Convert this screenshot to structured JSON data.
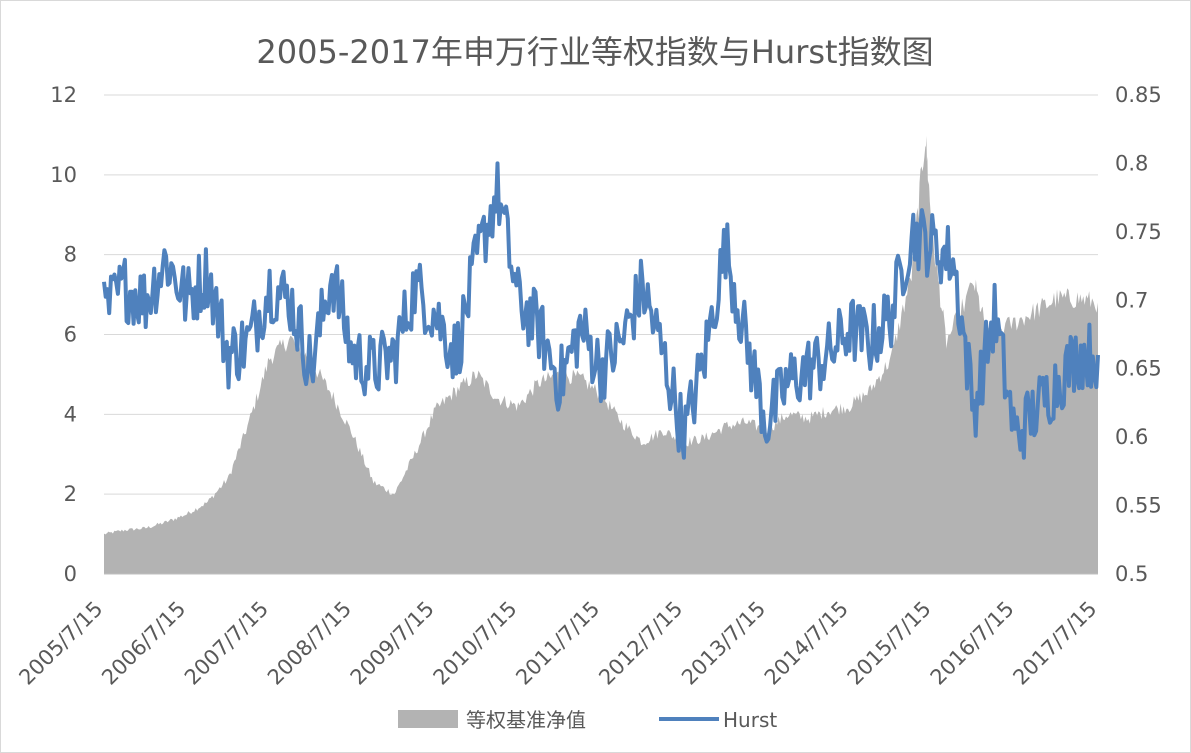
{
  "chart_data": {
    "type": "area+line",
    "title": "2005-2017年申万行业等权指数与Hurst指数图",
    "x_range": [
      "2005/7/15",
      "2017/7/15"
    ],
    "x_tick_labels": [
      "2005/7/15",
      "2006/7/15",
      "2007/7/15",
      "2008/7/15",
      "2009/7/15",
      "2010/7/15",
      "2011/7/15",
      "2012/7/15",
      "2013/7/15",
      "2014/7/15",
      "2015/7/15",
      "2016/7/15",
      "2017/7/15"
    ],
    "y_left": {
      "min": 0,
      "max": 12,
      "ticks": [
        "0",
        "2",
        "4",
        "6",
        "8",
        "10",
        "12"
      ]
    },
    "y_right": {
      "min": 0.5,
      "max": 0.85,
      "ticks": [
        "0.5",
        "0.55",
        "0.6",
        "0.65",
        "0.7",
        "0.75",
        "0.8",
        "0.85"
      ]
    },
    "grid": true,
    "legend_position": "bottom",
    "series": [
      {
        "name": "等权基准净值",
        "type": "area",
        "axis": "left",
        "color": "#b3b3b3",
        "x": [
          "2005/7/15",
          "2005/10/15",
          "2006/1/15",
          "2006/4/15",
          "2006/7/15",
          "2006/10/15",
          "2007/1/15",
          "2007/4/15",
          "2007/7/15",
          "2007/10/15",
          "2008/1/15",
          "2008/4/15",
          "2008/7/15",
          "2008/10/15",
          "2009/1/15",
          "2009/4/15",
          "2009/7/15",
          "2009/10/15",
          "2010/1/15",
          "2010/4/15",
          "2010/7/15",
          "2010/10/15",
          "2011/1/15",
          "2011/4/15",
          "2011/7/15",
          "2011/10/15",
          "2012/1/15",
          "2012/4/15",
          "2012/7/15",
          "2012/10/15",
          "2013/1/15",
          "2013/4/15",
          "2013/7/15",
          "2013/10/15",
          "2014/1/15",
          "2014/4/15",
          "2014/7/15",
          "2014/10/15",
          "2015/1/15",
          "2015/4/15",
          "2015/6/15",
          "2015/7/15",
          "2015/9/15",
          "2016/1/15",
          "2016/3/15",
          "2016/7/15",
          "2016/10/15",
          "2017/1/15",
          "2017/4/15",
          "2017/7/15"
        ],
        "values": [
          1.0,
          1.1,
          1.15,
          1.3,
          1.5,
          1.8,
          2.4,
          3.8,
          5.4,
          5.9,
          5.3,
          4.5,
          3.5,
          2.3,
          2.0,
          3.0,
          4.1,
          4.6,
          5.0,
          4.4,
          4.2,
          4.8,
          5.0,
          4.9,
          4.5,
          3.8,
          3.3,
          3.6,
          3.3,
          3.4,
          3.7,
          3.8,
          3.6,
          4.0,
          3.9,
          4.1,
          4.2,
          4.6,
          5.4,
          7.5,
          11.0,
          8.5,
          5.8,
          7.3,
          6.0,
          6.3,
          6.6,
          6.9,
          6.9,
          6.8
        ]
      },
      {
        "name": "Hurst",
        "type": "line",
        "axis": "right",
        "color": "#4f81bd",
        "x": [
          "2005/7/15",
          "2005/10/15",
          "2006/1/15",
          "2006/4/15",
          "2006/7/15",
          "2006/10/15",
          "2007/1/15",
          "2007/4/15",
          "2007/7/15",
          "2007/10/15",
          "2008/1/15",
          "2008/4/15",
          "2008/7/15",
          "2008/10/15",
          "2009/1/15",
          "2009/4/15",
          "2009/7/15",
          "2009/10/15",
          "2010/1/15",
          "2010/4/15",
          "2010/7/15",
          "2010/10/15",
          "2011/1/15",
          "2011/4/15",
          "2011/7/15",
          "2011/10/15",
          "2012/1/15",
          "2012/4/15",
          "2012/7/15",
          "2012/10/15",
          "2013/1/15",
          "2013/4/15",
          "2013/7/15",
          "2013/10/15",
          "2014/1/15",
          "2014/4/15",
          "2014/7/15",
          "2014/10/15",
          "2015/1/15",
          "2015/4/15",
          "2015/7/15",
          "2015/10/15",
          "2016/1/15",
          "2016/4/15",
          "2016/7/15",
          "2016/10/15",
          "2017/1/15",
          "2017/4/15",
          "2017/7/15"
        ],
        "values": [
          0.69,
          0.71,
          0.7,
          0.73,
          0.7,
          0.72,
          0.66,
          0.67,
          0.71,
          0.7,
          0.65,
          0.72,
          0.66,
          0.65,
          0.66,
          0.71,
          0.69,
          0.66,
          0.73,
          0.78,
          0.7,
          0.68,
          0.64,
          0.68,
          0.65,
          0.67,
          0.71,
          0.66,
          0.6,
          0.66,
          0.74,
          0.67,
          0.61,
          0.64,
          0.65,
          0.66,
          0.68,
          0.67,
          0.69,
          0.75,
          0.74,
          0.73,
          0.62,
          0.69,
          0.6,
          0.62,
          0.64,
          0.66,
          0.66
        ]
      }
    ]
  }
}
